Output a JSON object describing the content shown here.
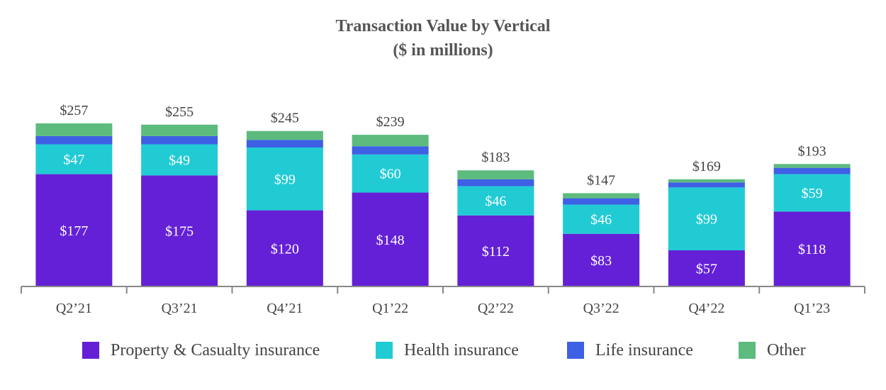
{
  "chart_data": {
    "type": "bar",
    "stacked": true,
    "title": "Transaction Value by Vertical",
    "subtitle": "($ in millions)",
    "categories": [
      "Q2’21",
      "Q3’21",
      "Q4’21",
      "Q1’22",
      "Q2’22",
      "Q3’22",
      "Q4’22",
      "Q1’23"
    ],
    "series": [
      {
        "name": "Property & Casualty insurance",
        "color": "#6420D6",
        "values": [
          177,
          175,
          120,
          148,
          112,
          83,
          57,
          118
        ],
        "labels": [
          "$177",
          "$175",
          "$120",
          "$148",
          "$112",
          "$83",
          "$57",
          "$118"
        ]
      },
      {
        "name": "Health insurance",
        "color": "#21CBD4",
        "values": [
          47,
          49,
          99,
          60,
          46,
          46,
          99,
          59
        ],
        "labels": [
          "$47",
          "$49",
          "$99",
          "$60",
          "$46",
          "$46",
          "$99",
          "$59"
        ]
      },
      {
        "name": "Life insurance",
        "color": "#3E60E5",
        "values": [
          13,
          13,
          12,
          13,
          11,
          10,
          8,
          10
        ]
      },
      {
        "name": "Other",
        "color": "#5DBB7E",
        "values": [
          20,
          18,
          14,
          18,
          14,
          8,
          5,
          6
        ]
      }
    ],
    "totals": [
      "$257",
      "$255",
      "$245",
      "$239",
      "$183",
      "$147",
      "$169",
      "$193"
    ],
    "total_values": [
      257,
      255,
      245,
      239,
      183,
      147,
      169,
      193
    ],
    "ylim": [
      0,
      257
    ],
    "grid": false,
    "legend_position": "bottom"
  }
}
